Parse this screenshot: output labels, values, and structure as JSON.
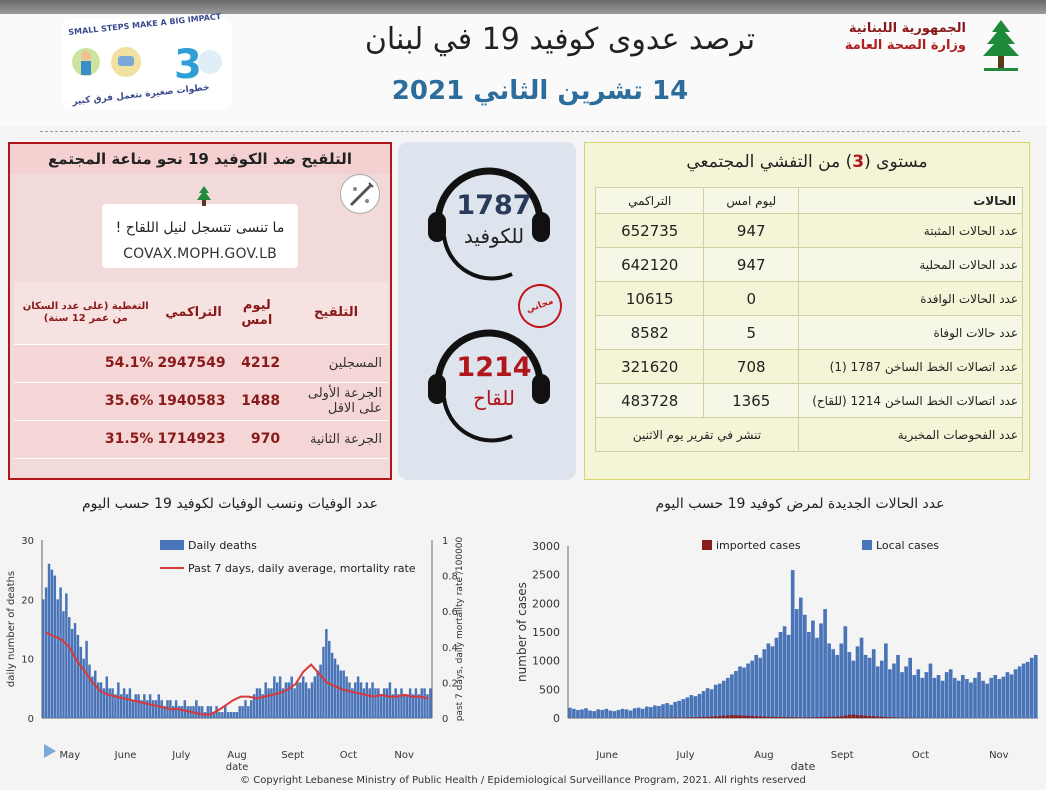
{
  "header": {
    "gov_line1": "الجمهورية اللبنانية",
    "gov_line2": "وزارة الصحة العامة",
    "title": "ترصد عدوى كوفيد 19 في لبنان",
    "date": "14 تشرين الثاني 2021",
    "logo_en": "SMALL STEPS MAKE A BIG IMPACT",
    "logo_ar": "خطوات صغيرة بتعمل فرق كبير"
  },
  "vaccination": {
    "heading": "التلقيح ضد الكوفيد 19  نحو مناعة المجتمع",
    "cta": "ما تنسى تتسجل لنيل اللقاح !",
    "url": "COVAX.MOPH.GOV.LB",
    "columns": [
      "التغطية (على عدد السكان من عمر 12 سنة)",
      "التراكمي",
      "ليوم امس",
      "التلقيح"
    ],
    "rows": [
      {
        "label": "المسجلين",
        "yesterday": "4212",
        "cumulative": "2947549",
        "coverage": "54.1%"
      },
      {
        "label": "الجرعة الأولى على الاقل",
        "yesterday": "1488",
        "cumulative": "1940583",
        "coverage": "35.6%"
      },
      {
        "label": "الجرعة الثانية",
        "yesterday": "970",
        "cumulative": "1714923",
        "coverage": "31.5%"
      }
    ]
  },
  "hotlines": {
    "covid_number": "1787",
    "covid_label": "للكوفيد",
    "vaccine_number": "1214",
    "vaccine_label": "للقاح",
    "free_stamp": "مجاني"
  },
  "cases": {
    "heading_pre": "مستوى (",
    "level": "3",
    "heading_post": ") من التفشي المجتمعي",
    "columns": [
      "الحالات",
      "ليوم امس",
      "التراكمي"
    ],
    "rows": [
      {
        "label": "عدد الحالات المثبتة",
        "yesterday": "947",
        "cumulative": "652735"
      },
      {
        "label": "عدد الحالات المحلية",
        "yesterday": "947",
        "cumulative": "642120"
      },
      {
        "label": "عدد الحالات الوافدة",
        "yesterday": "0",
        "cumulative": "10615"
      },
      {
        "label": "عدد حالات الوفاة",
        "yesterday": "5",
        "cumulative": "8582"
      },
      {
        "label": "عدد اتصالات الخط الساخن 1787 (1)",
        "yesterday": "708",
        "cumulative": "321620"
      },
      {
        "label": "عدد اتصالات الخط الساخن 1214 (للقاح)",
        "yesterday": "1365",
        "cumulative": "483728"
      }
    ],
    "tests_label": "عدد الفحوصات المخبرية",
    "tests_note": "تنشر في تقرير يوم الاثنين"
  },
  "colors": {
    "accent_red": "#b0161a",
    "blue": "#4a74b8",
    "dark_red": "#8b1a1a",
    "line_red": "#d9383a"
  },
  "footer": "© Copyright Lebanese Ministry of Public Health / Epidemiological Surveillance Program, 2021. All rights reserved",
  "chart_data": [
    {
      "type": "bar",
      "title": "عدد الوفيات ونسب الوفيات لكوفيد 19 حسب اليوم",
      "xlabel": "date",
      "ylabel": "daily number of deaths",
      "y2label": "past 7 days, daily mortality rate /100000",
      "ylim": [
        0,
        30
      ],
      "y2lim": [
        0,
        1
      ],
      "yticks": [
        0,
        10,
        20,
        30
      ],
      "y2ticks": [
        "0",
        "0.2",
        "0.4",
        "0.6",
        "0.8",
        "1"
      ],
      "months": [
        "May",
        "June",
        "July",
        "Aug",
        "Sept",
        "Oct",
        "Nov"
      ],
      "legend": [
        "Daily deaths",
        "Past 7 days, daily average, mortality rate"
      ],
      "legend_position": "top",
      "series": [
        {
          "name": "Daily deaths",
          "values": [
            20,
            22,
            26,
            25,
            24,
            20,
            22,
            18,
            21,
            17,
            15,
            16,
            14,
            12,
            10,
            13,
            9,
            7,
            8,
            6,
            6,
            5,
            7,
            5,
            5,
            4,
            6,
            4,
            5,
            4,
            5,
            3,
            4,
            4,
            3,
            4,
            3,
            4,
            3,
            3,
            4,
            3,
            2,
            3,
            3,
            2,
            3,
            2,
            2,
            3,
            2,
            2,
            2,
            3,
            2,
            2,
            1,
            2,
            2,
            1,
            2,
            1,
            1,
            2,
            1,
            1,
            1,
            1,
            2,
            2,
            3,
            2,
            3,
            4,
            5,
            5,
            4,
            6,
            5,
            5,
            7,
            6,
            7,
            5,
            6,
            6,
            7,
            5,
            6,
            6,
            7,
            6,
            5,
            6,
            7,
            8,
            9,
            12,
            15,
            13,
            11,
            10,
            9,
            8,
            8,
            7,
            6,
            5,
            6,
            7,
            6,
            5,
            6,
            5,
            6,
            5,
            5,
            4,
            5,
            5,
            6,
            4,
            5,
            4,
            5,
            4,
            4,
            5,
            4,
            5,
            4,
            5,
            5,
            4,
            5
          ]
        },
        {
          "name": "Past 7 days, daily average, mortality rate",
          "values": [
            0.48,
            0.46,
            0.44,
            0.4,
            0.32,
            0.26,
            0.2,
            0.15,
            0.13,
            0.12,
            0.11,
            0.1,
            0.09,
            0.08,
            0.07,
            0.06,
            0.05,
            0.05,
            0.04,
            0.03,
            0.02,
            0.02,
            0.04,
            0.07,
            0.1,
            0.12,
            0.12,
            0.11,
            0.12,
            0.13,
            0.14,
            0.16,
            0.19,
            0.26,
            0.3,
            0.25,
            0.2,
            0.18,
            0.16,
            0.15,
            0.14,
            0.13,
            0.12,
            0.13,
            0.12,
            0.12,
            0.13,
            0.12,
            0.12,
            0.11
          ]
        }
      ]
    },
    {
      "type": "bar",
      "title": "عدد الحالات الجديدة لمرض كوفيد 19 حسب اليوم",
      "xlabel": "date",
      "ylabel": "number of cases",
      "ylim": [
        0,
        3000
      ],
      "yticks": [
        0,
        500,
        1000,
        1500,
        2000,
        2500,
        3000
      ],
      "months": [
        "June",
        "July",
        "Aug",
        "Sept",
        "Oct",
        "Nov"
      ],
      "legend": [
        "imported cases",
        "Local cases"
      ],
      "legend_position": "top",
      "series": [
        {
          "name": "Local cases",
          "values": [
            180,
            160,
            140,
            150,
            170,
            130,
            120,
            150,
            140,
            160,
            130,
            120,
            140,
            160,
            150,
            130,
            170,
            180,
            160,
            200,
            190,
            220,
            210,
            240,
            260,
            230,
            280,
            300,
            330,
            360,
            400,
            380,
            420,
            470,
            520,
            500,
            580,
            600,
            650,
            700,
            760,
            820,
            900,
            880,
            950,
            1000,
            1100,
            1050,
            1200,
            1300,
            1250,
            1400,
            1500,
            1600,
            1450,
            2580,
            1900,
            2100,
            1800,
            1500,
            1700,
            1400,
            1650,
            1900,
            1300,
            1200,
            1100,
            1300,
            1600,
            1150,
            1000,
            1250,
            1400,
            1100,
            1050,
            1200,
            900,
            1000,
            1300,
            850,
            950,
            1100,
            800,
            900,
            1050,
            750,
            850,
            700,
            800,
            950,
            700,
            750,
            650,
            800,
            850,
            700,
            650,
            750,
            680,
            620,
            700,
            800,
            650,
            600,
            700,
            750,
            680,
            720,
            800,
            760,
            850,
            900,
            950,
            980,
            1050,
            1100
          ]
        },
        {
          "name": "imported cases",
          "values": [
            5,
            4,
            6,
            5,
            4,
            6,
            8,
            7,
            6,
            9,
            10,
            12,
            15,
            18,
            20,
            25,
            30,
            35,
            40,
            45,
            50,
            48,
            45,
            40,
            38,
            35,
            30,
            28,
            25,
            22,
            20,
            18,
            16,
            15,
            14,
            12,
            10,
            9,
            8,
            10,
            12,
            14,
            16,
            18,
            20,
            22,
            25,
            30,
            40,
            55,
            60,
            50,
            45,
            40,
            35,
            30,
            25,
            20,
            15,
            12,
            10,
            8,
            6,
            5,
            4,
            3,
            2,
            2,
            1,
            1,
            1,
            1,
            1,
            1,
            1,
            1,
            1,
            1,
            0,
            0
          ]
        }
      ]
    }
  ]
}
